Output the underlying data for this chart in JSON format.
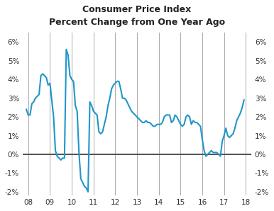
{
  "title_line1": "Consumer Price Index",
  "title_line2": "Percent Change from One Year Ago",
  "line_color": "#2196c8",
  "background_color": "#ffffff",
  "zero_line_color": "#555555",
  "grid_color": "#aaaaaa",
  "xlim": [
    7.75,
    18.25
  ],
  "ylim": [
    -2.2,
    6.5
  ],
  "yticks": [
    -2,
    -1,
    0,
    1,
    2,
    3,
    4,
    5,
    6
  ],
  "ytick_labels": [
    "-2%",
    "-1%",
    "0%",
    "1%",
    "2%",
    "3%",
    "4%",
    "5%",
    "6%"
  ],
  "xtick_positions": [
    8,
    9,
    10,
    11,
    12,
    13,
    14,
    15,
    16,
    17,
    18
  ],
  "xtick_labels": [
    "08",
    "09",
    "10",
    "11",
    "12",
    "13",
    "14",
    "15",
    "16",
    "17",
    "18"
  ],
  "vertical_lines_x": [
    8,
    9,
    10,
    11,
    12,
    13,
    14,
    15,
    16,
    17,
    18
  ],
  "data": [
    [
      7.917,
      2.4
    ],
    [
      8.0,
      2.1
    ],
    [
      8.083,
      2.1
    ],
    [
      8.167,
      2.7
    ],
    [
      8.25,
      2.8
    ],
    [
      8.333,
      3.0
    ],
    [
      8.417,
      3.1
    ],
    [
      8.5,
      3.2
    ],
    [
      8.583,
      4.2
    ],
    [
      8.667,
      4.3
    ],
    [
      8.75,
      4.2
    ],
    [
      8.833,
      4.1
    ],
    [
      8.917,
      3.7
    ],
    [
      9.0,
      3.8
    ],
    [
      9.083,
      2.9
    ],
    [
      9.167,
      2.0
    ],
    [
      9.25,
      0.2
    ],
    [
      9.333,
      -0.1
    ],
    [
      9.417,
      -0.2
    ],
    [
      9.5,
      -0.3
    ],
    [
      9.583,
      -0.2
    ],
    [
      9.667,
      -0.2
    ],
    [
      9.75,
      5.6
    ],
    [
      9.833,
      5.3
    ],
    [
      9.917,
      4.2
    ],
    [
      10.0,
      4.0
    ],
    [
      10.083,
      3.9
    ],
    [
      10.167,
      2.6
    ],
    [
      10.25,
      2.3
    ],
    [
      10.333,
      0.1
    ],
    [
      10.417,
      -1.3
    ],
    [
      10.5,
      -1.5
    ],
    [
      10.583,
      -1.7
    ],
    [
      10.667,
      -1.8
    ],
    [
      10.75,
      -2.0
    ],
    [
      10.833,
      2.8
    ],
    [
      10.917,
      2.6
    ],
    [
      11.0,
      2.3
    ],
    [
      11.083,
      2.2
    ],
    [
      11.167,
      2.1
    ],
    [
      11.25,
      1.2
    ],
    [
      11.333,
      1.1
    ],
    [
      11.417,
      1.2
    ],
    [
      11.5,
      1.6
    ],
    [
      11.583,
      2.0
    ],
    [
      11.667,
      2.6
    ],
    [
      11.75,
      3.0
    ],
    [
      11.833,
      3.5
    ],
    [
      11.917,
      3.7
    ],
    [
      12.0,
      3.8
    ],
    [
      12.083,
      3.9
    ],
    [
      12.167,
      3.9
    ],
    [
      12.25,
      3.5
    ],
    [
      12.333,
      3.0
    ],
    [
      12.417,
      3.0
    ],
    [
      12.5,
      2.9
    ],
    [
      12.583,
      2.7
    ],
    [
      12.667,
      2.5
    ],
    [
      12.75,
      2.3
    ],
    [
      12.833,
      2.2
    ],
    [
      12.917,
      2.1
    ],
    [
      13.0,
      2.0
    ],
    [
      13.083,
      1.9
    ],
    [
      13.167,
      1.8
    ],
    [
      13.25,
      1.7
    ],
    [
      13.333,
      1.7
    ],
    [
      13.417,
      1.8
    ],
    [
      13.5,
      1.7
    ],
    [
      13.583,
      1.7
    ],
    [
      13.667,
      1.6
    ],
    [
      13.75,
      1.5
    ],
    [
      13.833,
      1.5
    ],
    [
      13.917,
      1.6
    ],
    [
      14.0,
      1.6
    ],
    [
      14.083,
      1.6
    ],
    [
      14.167,
      1.7
    ],
    [
      14.25,
      2.0
    ],
    [
      14.333,
      2.1
    ],
    [
      14.417,
      2.1
    ],
    [
      14.5,
      2.1
    ],
    [
      14.583,
      1.7
    ],
    [
      14.667,
      1.8
    ],
    [
      14.75,
      2.1
    ],
    [
      14.833,
      2.0
    ],
    [
      14.917,
      1.8
    ],
    [
      15.0,
      1.6
    ],
    [
      15.083,
      1.5
    ],
    [
      15.167,
      1.6
    ],
    [
      15.25,
      2.0
    ],
    [
      15.333,
      2.1
    ],
    [
      15.417,
      2.0
    ],
    [
      15.5,
      1.6
    ],
    [
      15.583,
      1.8
    ],
    [
      15.667,
      1.7
    ],
    [
      15.75,
      1.7
    ],
    [
      15.833,
      1.6
    ],
    [
      15.917,
      1.5
    ],
    [
      16.0,
      0.8
    ],
    [
      16.083,
      0.2
    ],
    [
      16.167,
      -0.1
    ],
    [
      16.25,
      0.0
    ],
    [
      16.333,
      0.1
    ],
    [
      16.417,
      0.2
    ],
    [
      16.5,
      0.1
    ],
    [
      16.583,
      0.1
    ],
    [
      16.667,
      0.1
    ],
    [
      16.75,
      0.0
    ],
    [
      16.833,
      -0.1
    ],
    [
      16.917,
      0.7
    ],
    [
      17.0,
      1.0
    ],
    [
      17.083,
      1.4
    ],
    [
      17.167,
      1.0
    ],
    [
      17.25,
      0.9
    ],
    [
      17.333,
      1.0
    ],
    [
      17.417,
      1.1
    ],
    [
      17.5,
      1.4
    ],
    [
      17.583,
      1.8
    ],
    [
      17.667,
      2.0
    ],
    [
      17.75,
      2.2
    ],
    [
      17.833,
      2.5
    ],
    [
      17.917,
      2.9
    ]
  ]
}
